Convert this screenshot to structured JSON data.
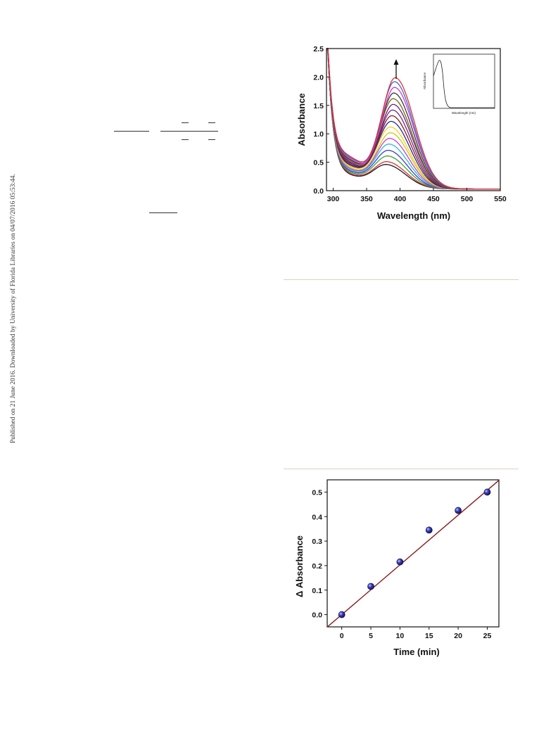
{
  "side_note": "Published on 21 June 2016. Downloaded by University of Florida Libraries on 04/07/2016 05:53:44.",
  "chart_data": [
    {
      "type": "line",
      "xlabel": "Wavelength (nm)",
      "ylabel": "Absorbance",
      "xlim": [
        290,
        550
      ],
      "ylim": [
        0,
        2.5
      ],
      "xticks": [
        "300",
        "350",
        "400",
        "450",
        "500",
        "550"
      ],
      "yticks": [
        "0.0",
        "0.5",
        "1.0",
        "1.5",
        "2.0",
        "2.5"
      ],
      "grid": false,
      "annotation": "upward arrow above peak at ~393 nm",
      "series": [
        {
          "peak_x": 380,
          "peak": 0.42,
          "color": "#1a1a1a"
        },
        {
          "peak_x": 381,
          "peak": 0.47,
          "color": "#e0302f"
        },
        {
          "peak_x": 382,
          "peak": 0.57,
          "color": "#3aa33a"
        },
        {
          "peak_x": 383,
          "peak": 0.67,
          "color": "#3b3bd4"
        },
        {
          "peak_x": 384,
          "peak": 0.78,
          "color": "#27b9d9"
        },
        {
          "peak_x": 385,
          "peak": 0.88,
          "color": "#d13ad1"
        },
        {
          "peak_x": 386,
          "peak": 0.98,
          "color": "#c8c820"
        },
        {
          "peak_x": 386,
          "peak": 1.08,
          "color": "#f2d21a"
        },
        {
          "peak_x": 387,
          "peak": 1.18,
          "color": "#262693"
        },
        {
          "peak_x": 388,
          "peak": 1.28,
          "color": "#8b1a1a"
        },
        {
          "peak_x": 389,
          "peak": 1.38,
          "color": "#6b2a8e"
        },
        {
          "peak_x": 390,
          "peak": 1.48,
          "color": "#7a1a6e"
        },
        {
          "peak_x": 390,
          "peak": 1.58,
          "color": "#6b6b1a"
        },
        {
          "peak_x": 391,
          "peak": 1.68,
          "color": "#3a3a3a"
        },
        {
          "peak_x": 392,
          "peak": 1.78,
          "color": "#d13ad1"
        },
        {
          "peak_x": 392,
          "peak": 1.88,
          "color": "#3b6bd4"
        },
        {
          "peak_x": 393,
          "peak": 1.95,
          "color": "#e0302f"
        }
      ],
      "inset": {
        "xlabel": "Wavelength (nm)",
        "ylabel": "Absorbance",
        "type": "line"
      }
    },
    {
      "type": "scatter",
      "xlabel": "Time (min)",
      "ylabel": "Δ Absorbance",
      "xlim": [
        -2.5,
        27
      ],
      "ylim": [
        -0.05,
        0.55
      ],
      "xticks": [
        "0",
        "5",
        "10",
        "15",
        "20",
        "25"
      ],
      "yticks": [
        "0.0",
        "0.1",
        "0.2",
        "0.3",
        "0.4",
        "0.5"
      ],
      "grid": false,
      "series": [
        {
          "x": [
            0,
            5,
            10,
            15,
            20,
            25
          ],
          "values": [
            0.0,
            0.115,
            0.215,
            0.345,
            0.425,
            0.5
          ]
        }
      ],
      "fit": {
        "slope": 0.0203,
        "intercept": 0.0
      }
    }
  ]
}
